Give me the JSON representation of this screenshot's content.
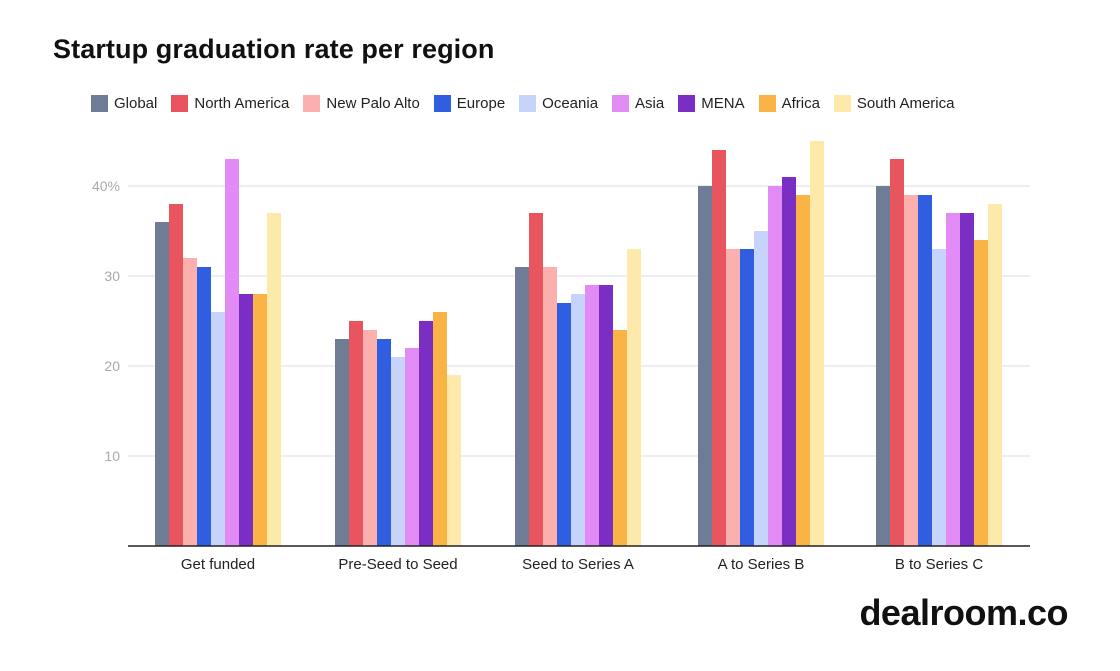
{
  "chart_data": {
    "type": "bar",
    "title": "Startup graduation rate per region",
    "xlabel": "",
    "ylabel": "",
    "ylim": [
      0,
      45
    ],
    "yticks": [
      {
        "value": 10,
        "label": "10"
      },
      {
        "value": 20,
        "label": "20"
      },
      {
        "value": 30,
        "label": "30"
      },
      {
        "value": 40,
        "label": "40%"
      }
    ],
    "categories": [
      "Get funded",
      "Pre-Seed to Seed",
      "Seed to Series A",
      "A to Series B",
      "B to Series C"
    ],
    "series": [
      {
        "name": "Global",
        "color": "#6e7c96",
        "values": [
          36,
          23,
          31,
          40,
          40
        ]
      },
      {
        "name": "North America",
        "color": "#e8555f",
        "values": [
          38,
          25,
          37,
          44,
          43
        ]
      },
      {
        "name": "New Palo Alto",
        "color": "#fbb0ae",
        "values": [
          32,
          24,
          31,
          33,
          39
        ]
      },
      {
        "name": "Europe",
        "color": "#2f5ee0",
        "values": [
          31,
          23,
          27,
          33,
          39
        ]
      },
      {
        "name": "Oceania",
        "color": "#c6d3fb",
        "values": [
          26,
          21,
          28,
          35,
          33
        ]
      },
      {
        "name": "Asia",
        "color": "#e28bf5",
        "values": [
          43,
          22,
          29,
          40,
          37
        ]
      },
      {
        "name": "MENA",
        "color": "#7b2ec4",
        "values": [
          28,
          25,
          29,
          41,
          37
        ]
      },
      {
        "name": "Africa",
        "color": "#fab446",
        "values": [
          28,
          26,
          24,
          39,
          34
        ]
      },
      {
        "name": "South America",
        "color": "#fdeaaa",
        "values": [
          37,
          19,
          33,
          45,
          38
        ]
      }
    ],
    "grid": true,
    "legend": "top-left"
  },
  "brand": {
    "text": "dealroom.co"
  }
}
